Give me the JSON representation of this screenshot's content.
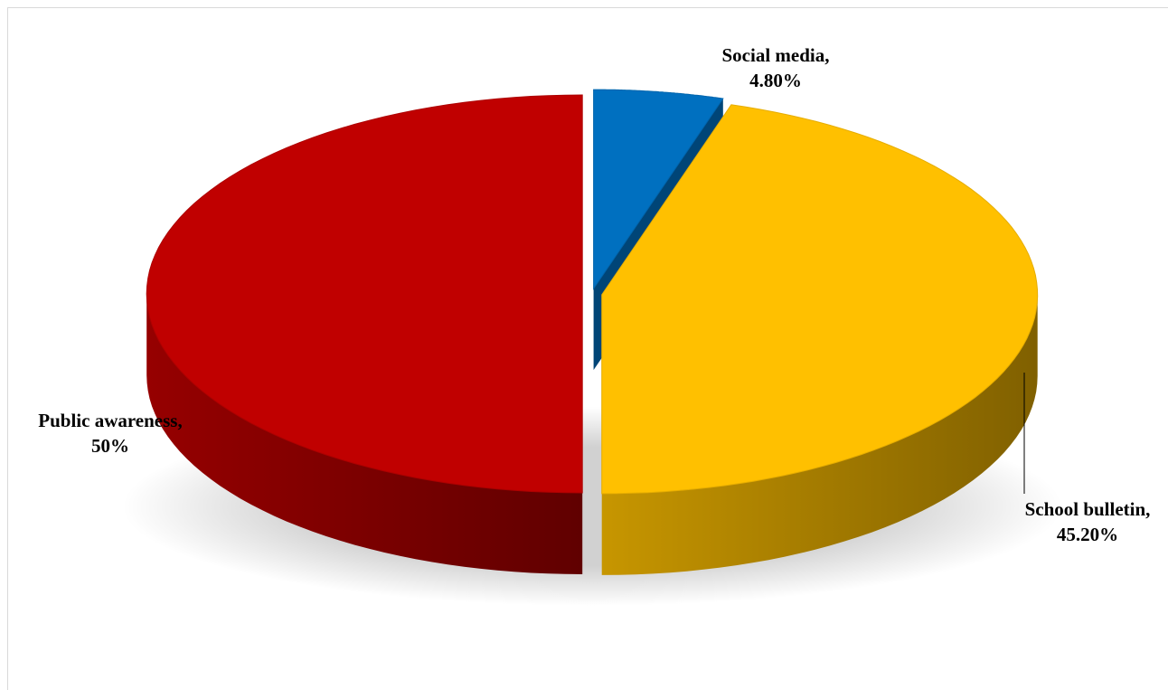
{
  "chart_data": {
    "type": "pie",
    "title": "",
    "slices": [
      {
        "name": "Social media",
        "value": 4.8,
        "display": "4.80%",
        "color": "#0070C0"
      },
      {
        "name": "School bulletin",
        "value": 45.2,
        "display": "45.20%",
        "color": "#FFC000"
      },
      {
        "name": "Public awareness",
        "value": 50,
        "display": "50%",
        "color": "#C00000"
      }
    ],
    "legend": "none",
    "labels": "outside, category name and percentage",
    "style": "3d-exploded"
  }
}
